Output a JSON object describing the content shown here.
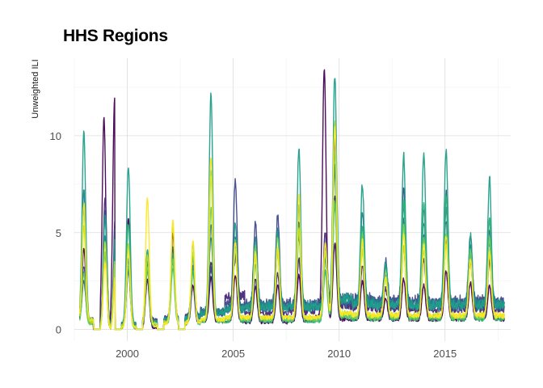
{
  "chart_data": {
    "type": "line",
    "title": "HHS Regions",
    "xlabel": "",
    "ylabel": "Unweighted ILI",
    "xlim": [
      1997.5,
      2018.1
    ],
    "ylim": [
      -0.6,
      14.0
    ],
    "x_ticks": [
      2000,
      2005,
      2010,
      2015
    ],
    "x_tick_labels": [
      "2000",
      "2005",
      "2010",
      "2015"
    ],
    "y_ticks": [
      0,
      5,
      10
    ],
    "y_tick_labels": [
      "0",
      "5",
      "10"
    ],
    "grid": true,
    "legend": "none",
    "series_colors": [
      "#440154",
      "#482878",
      "#3e4989",
      "#31688e",
      "#26828e",
      "#1f9e89",
      "#35b779",
      "#6ece58",
      "#b5de2b",
      "#fde725"
    ],
    "series": [
      {
        "peaks": [
          [
            1997.95,
            4.2
          ],
          [
            1998.9,
            10.9
          ],
          [
            1999.4,
            11.9
          ],
          [
            2000.05,
            5.7
          ],
          [
            2000.95,
            2.6
          ],
          [
            2002.15,
            5.0
          ],
          [
            2003.1,
            2.3
          ],
          [
            2003.95,
            2.7
          ],
          [
            2005.1,
            2.8
          ],
          [
            2006.05,
            2.2
          ],
          [
            2007.1,
            2.3
          ],
          [
            2008.1,
            2.8
          ],
          [
            2009.3,
            13.5
          ],
          [
            2009.8,
            4.5
          ],
          [
            2011.1,
            2.5
          ],
          [
            2012.2,
            1.6
          ],
          [
            2013.05,
            2.6
          ],
          [
            2014.0,
            2.3
          ],
          [
            2015.05,
            3.0
          ],
          [
            2016.2,
            2.4
          ],
          [
            2017.1,
            2.3
          ]
        ],
        "troughs": [
          0.35,
          0.0,
          0.0,
          0.1,
          0.1,
          0.3,
          0.3,
          0.4,
          0.4,
          0.35,
          0.35,
          0.4,
          0.6,
          0.5,
          0.5,
          0.5,
          0.5,
          0.5,
          0.5,
          0.5,
          0.5
        ]
      },
      {
        "peaks": [
          [
            1997.95,
            2.5
          ],
          [
            1998.95,
            6.8
          ],
          [
            1999.45,
            6.5
          ],
          [
            2000.05,
            3.3
          ],
          [
            2000.95,
            3.5
          ],
          [
            2002.15,
            4.2
          ],
          [
            2003.1,
            3.3
          ],
          [
            2003.95,
            3.5
          ],
          [
            2005.1,
            3.8
          ],
          [
            2006.05,
            2.6
          ],
          [
            2007.1,
            2.9
          ],
          [
            2008.1,
            3.6
          ],
          [
            2009.35,
            4.9
          ],
          [
            2009.8,
            7.0
          ],
          [
            2011.1,
            3.2
          ],
          [
            2012.2,
            2.1
          ],
          [
            2013.05,
            4.3
          ],
          [
            2014.0,
            3.6
          ],
          [
            2015.05,
            4.6
          ],
          [
            2016.2,
            3.5
          ],
          [
            2017.1,
            3.6
          ]
        ],
        "troughs": [
          0.4,
          0.1,
          0.1,
          0.2,
          0.4,
          0.5,
          0.6,
          0.8,
          1.6,
          0.8,
          0.8,
          0.9,
          1.1,
          1.2,
          1.1,
          1.0,
          1.0,
          1.0,
          1.0,
          1.0,
          1.0
        ]
      },
      {
        "peaks": [
          [
            1997.95,
            3.3
          ],
          [
            1998.95,
            6.2
          ],
          [
            1999.45,
            5.9
          ],
          [
            2000.05,
            3.0
          ],
          [
            2000.95,
            3.0
          ],
          [
            2002.15,
            3.8
          ],
          [
            2003.1,
            3.0
          ],
          [
            2003.95,
            3.2
          ],
          [
            2005.1,
            7.8
          ],
          [
            2006.05,
            5.4
          ],
          [
            2007.1,
            5.8
          ],
          [
            2008.1,
            5.5
          ],
          [
            2009.35,
            4.6
          ],
          [
            2009.8,
            9.8
          ],
          [
            2011.1,
            5.4
          ],
          [
            2012.2,
            3.6
          ],
          [
            2013.05,
            7.3
          ],
          [
            2014.0,
            6.3
          ],
          [
            2015.05,
            7.0
          ],
          [
            2016.2,
            4.8
          ],
          [
            2017.1,
            5.2
          ]
        ],
        "troughs": [
          0.5,
          0.2,
          0.2,
          0.3,
          0.5,
          0.6,
          0.7,
          0.9,
          1.2,
          1.3,
          1.3,
          1.3,
          1.3,
          1.6,
          1.5,
          1.4,
          1.4,
          1.4,
          1.4,
          1.4,
          1.4
        ]
      },
      {
        "peaks": [
          [
            1997.95,
            3.0
          ],
          [
            1998.95,
            5.8
          ],
          [
            1999.45,
            5.3
          ],
          [
            2000.05,
            3.2
          ],
          [
            2000.95,
            3.3
          ],
          [
            2002.15,
            4.3
          ],
          [
            2003.1,
            3.1
          ],
          [
            2003.95,
            5.5
          ],
          [
            2005.1,
            4.8
          ],
          [
            2006.05,
            4.0
          ],
          [
            2007.1,
            4.2
          ],
          [
            2008.1,
            4.8
          ],
          [
            2009.35,
            4.2
          ],
          [
            2009.8,
            6.5
          ],
          [
            2011.1,
            4.6
          ],
          [
            2012.2,
            2.8
          ],
          [
            2013.05,
            5.6
          ],
          [
            2014.0,
            5.0
          ],
          [
            2015.05,
            5.6
          ],
          [
            2016.2,
            4.2
          ],
          [
            2017.1,
            4.5
          ]
        ],
        "troughs": [
          0.4,
          0.1,
          0.1,
          0.3,
          0.4,
          0.5,
          0.6,
          0.8,
          1.0,
          1.1,
          1.1,
          1.1,
          1.1,
          1.3,
          1.3,
          1.2,
          1.2,
          1.2,
          1.2,
          1.2,
          1.2
        ]
      },
      {
        "peaks": [
          [
            1997.95,
            7.2
          ],
          [
            1998.95,
            4.8
          ],
          [
            1999.45,
            4.4
          ],
          [
            2000.05,
            3.6
          ],
          [
            2000.95,
            3.4
          ],
          [
            2002.15,
            3.5
          ],
          [
            2003.1,
            3.2
          ],
          [
            2003.95,
            4.8
          ],
          [
            2005.1,
            4.3
          ],
          [
            2006.05,
            4.9
          ],
          [
            2007.1,
            5.1
          ],
          [
            2008.1,
            5.4
          ],
          [
            2009.35,
            3.8
          ],
          [
            2009.8,
            8.4
          ],
          [
            2011.1,
            6.1
          ],
          [
            2012.2,
            3.2
          ],
          [
            2013.05,
            6.4
          ],
          [
            2014.0,
            5.6
          ],
          [
            2015.05,
            6.2
          ],
          [
            2016.2,
            4.4
          ],
          [
            2017.1,
            5.6
          ]
        ],
        "troughs": [
          0.5,
          0.1,
          0.1,
          0.3,
          0.4,
          0.5,
          0.6,
          0.9,
          1.0,
          1.2,
          1.2,
          1.2,
          1.2,
          1.5,
          1.4,
          1.3,
          1.3,
          1.3,
          1.3,
          1.3,
          1.3
        ]
      },
      {
        "peaks": [
          [
            1997.95,
            10.2
          ],
          [
            1998.95,
            5.9
          ],
          [
            1999.45,
            5.4
          ],
          [
            2000.05,
            8.4
          ],
          [
            2000.95,
            4.1
          ],
          [
            2002.15,
            3.9
          ],
          [
            2003.1,
            3.7
          ],
          [
            2003.95,
            12.2
          ],
          [
            2005.1,
            5.5
          ],
          [
            2006.05,
            4.4
          ],
          [
            2007.1,
            5.0
          ],
          [
            2008.1,
            9.4
          ],
          [
            2009.35,
            3.6
          ],
          [
            2009.8,
            13.2
          ],
          [
            2011.1,
            7.5
          ],
          [
            2012.2,
            3.4
          ],
          [
            2013.05,
            9.0
          ],
          [
            2014.0,
            9.2
          ],
          [
            2015.05,
            9.3
          ],
          [
            2016.2,
            4.9
          ],
          [
            2017.1,
            7.8
          ]
        ],
        "troughs": [
          0.5,
          0.1,
          0.1,
          0.3,
          0.4,
          0.5,
          0.6,
          0.8,
          1.0,
          1.1,
          1.1,
          1.1,
          1.1,
          1.5,
          1.3,
          1.2,
          1.2,
          1.2,
          1.2,
          1.2,
          1.2
        ]
      },
      {
        "peaks": [
          [
            1997.95,
            6.3
          ],
          [
            1998.95,
            3.9
          ],
          [
            1999.45,
            3.6
          ],
          [
            2000.05,
            5.4
          ],
          [
            2000.95,
            3.3
          ],
          [
            2002.15,
            3.2
          ],
          [
            2003.1,
            3.0
          ],
          [
            2003.95,
            8.3
          ],
          [
            2005.1,
            4.2
          ],
          [
            2006.05,
            3.4
          ],
          [
            2007.1,
            4.0
          ],
          [
            2008.1,
            6.4
          ],
          [
            2009.35,
            3.0
          ],
          [
            2009.8,
            9.2
          ],
          [
            2011.1,
            5.4
          ],
          [
            2012.2,
            2.7
          ],
          [
            2013.05,
            6.8
          ],
          [
            2014.0,
            6.6
          ],
          [
            2015.05,
            6.9
          ],
          [
            2016.2,
            3.9
          ],
          [
            2017.1,
            5.8
          ]
        ],
        "troughs": [
          0.3,
          0.0,
          0.0,
          0.1,
          0.2,
          0.3,
          0.3,
          0.4,
          0.4,
          0.4,
          0.4,
          0.4,
          0.4,
          0.6,
          0.5,
          0.5,
          0.5,
          0.5,
          0.5,
          0.5,
          0.5
        ]
      },
      {
        "peaks": [
          [
            1997.95,
            2.9
          ],
          [
            1998.95,
            4.0
          ],
          [
            1999.45,
            3.8
          ],
          [
            2000.05,
            3.3
          ],
          [
            2000.95,
            3.2
          ],
          [
            2002.15,
            3.6
          ],
          [
            2003.1,
            4.4
          ],
          [
            2003.95,
            6.3
          ],
          [
            2005.1,
            4.6
          ],
          [
            2006.05,
            4.3
          ],
          [
            2007.1,
            4.8
          ],
          [
            2008.1,
            5.3
          ],
          [
            2009.35,
            4.1
          ],
          [
            2009.8,
            6.6
          ],
          [
            2011.1,
            4.9
          ],
          [
            2012.2,
            3.1
          ],
          [
            2013.05,
            5.4
          ],
          [
            2014.0,
            4.7
          ],
          [
            2015.05,
            5.0
          ],
          [
            2016.2,
            4.1
          ],
          [
            2017.1,
            4.7
          ]
        ],
        "troughs": [
          0.3,
          0.0,
          0.0,
          0.1,
          0.2,
          0.3,
          0.3,
          0.4,
          0.5,
          0.5,
          0.5,
          0.5,
          0.5,
          0.7,
          0.6,
          0.6,
          0.6,
          0.6,
          0.6,
          0.6,
          0.6
        ]
      },
      {
        "peaks": [
          [
            1997.95,
            5.4
          ],
          [
            1998.95,
            4.5
          ],
          [
            1999.45,
            4.1
          ],
          [
            2000.05,
            4.4
          ],
          [
            2000.95,
            3.8
          ],
          [
            2002.15,
            5.4
          ],
          [
            2003.1,
            4.0
          ],
          [
            2003.95,
            7.9
          ],
          [
            2005.1,
            4.1
          ],
          [
            2006.05,
            3.7
          ],
          [
            2007.1,
            3.9
          ],
          [
            2008.1,
            5.1
          ],
          [
            2009.35,
            3.9
          ],
          [
            2009.8,
            10.7
          ],
          [
            2011.1,
            4.1
          ],
          [
            2012.2,
            2.6
          ],
          [
            2013.05,
            4.3
          ],
          [
            2014.0,
            4.0
          ],
          [
            2015.05,
            4.4
          ],
          [
            2016.2,
            3.6
          ],
          [
            2017.1,
            3.8
          ]
        ],
        "troughs": [
          0.4,
          0.1,
          0.1,
          0.2,
          0.3,
          0.4,
          0.4,
          0.5,
          0.6,
          0.6,
          0.6,
          0.6,
          0.6,
          0.8,
          0.7,
          0.7,
          0.7,
          0.7,
          0.7,
          0.7,
          0.7
        ]
      },
      {
        "peaks": [
          [
            1997.95,
            6.5
          ],
          [
            1998.95,
            3.4
          ],
          [
            1999.45,
            3.1
          ],
          [
            2000.05,
            4.0
          ],
          [
            2000.95,
            6.8
          ],
          [
            2002.15,
            5.6
          ],
          [
            2003.1,
            4.6
          ],
          [
            2003.95,
            8.9
          ],
          [
            2005.1,
            4.5
          ],
          [
            2006.05,
            4.0
          ],
          [
            2007.1,
            4.3
          ],
          [
            2008.1,
            7.0
          ],
          [
            2009.35,
            4.5
          ],
          [
            2009.8,
            10.5
          ],
          [
            2011.1,
            4.6
          ],
          [
            2012.2,
            2.7
          ],
          [
            2013.05,
            4.9
          ],
          [
            2014.0,
            4.4
          ],
          [
            2015.05,
            4.8
          ],
          [
            2016.2,
            3.6
          ],
          [
            2017.1,
            4.0
          ]
        ],
        "troughs": [
          0.5,
          0.0,
          0.0,
          0.1,
          0.2,
          0.3,
          0.3,
          0.5,
          0.6,
          0.6,
          0.6,
          0.6,
          0.6,
          0.8,
          0.7,
          0.7,
          0.7,
          0.7,
          0.7,
          0.7,
          0.7
        ]
      }
    ]
  }
}
